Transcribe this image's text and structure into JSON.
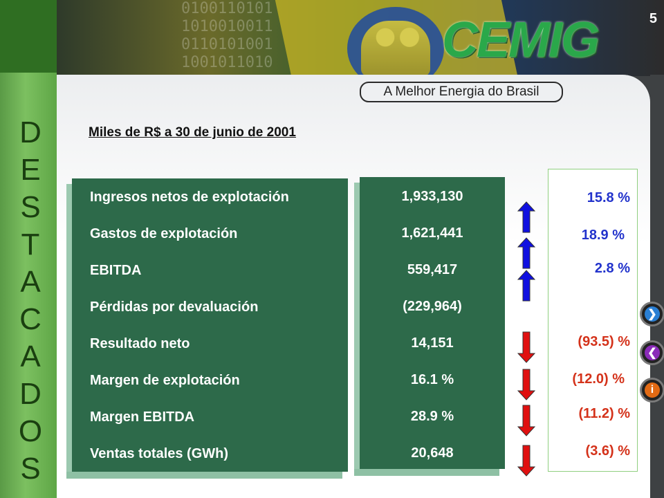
{
  "page_number": "5",
  "side_word": [
    "D",
    "E",
    "S",
    "T",
    "A",
    "C",
    "A",
    "D",
    "O",
    "S"
  ],
  "brand": {
    "logo": "CEMIG",
    "slogan": "A Melhor Energia do Brasil",
    "binary_text": "0100110101\n1010010011\n0110101001\n1001011010"
  },
  "subtitle": "Miles de R$ a 30 de junio de 2001",
  "rows": [
    {
      "label": "Ingresos netos de explotación",
      "value": "1,933,130",
      "trend": "up",
      "change": "15.8 %"
    },
    {
      "label": "Gastos de explotación",
      "value": "1,621,441",
      "trend": "up",
      "change": "18.9 %"
    },
    {
      "label": "EBITDA",
      "value": "559,417",
      "trend": "up",
      "change": "2.8 %"
    },
    {
      "label": "Pérdidas por devaluación",
      "value": "(229,964)",
      "trend": "none",
      "change": ""
    },
    {
      "label": "Resultado neto",
      "value": "14,151",
      "trend": "down",
      "change": "(93.5) %"
    },
    {
      "label": "Margen de explotación",
      "value": "16.1 %",
      "trend": "down",
      "change": "(12.0) %"
    },
    {
      "label": "Margen EBITDA",
      "value": "28.9 %",
      "trend": "down",
      "change": "(11.2) %"
    },
    {
      "label": "Ventas totales (GWh)",
      "value": "20,648",
      "trend": "down",
      "change": "(3.6) %"
    }
  ],
  "nav": {
    "next_icon": "chevron-right-icon",
    "prev_icon": "chevron-left-icon",
    "info_icon": "info-icon",
    "next_glyph": "❯",
    "prev_glyph": "❮",
    "info_glyph": "i"
  },
  "colors": {
    "table_green": "#2d6a4a",
    "up_color": "#2233cc",
    "down_color": "#d4321a",
    "arrow_up": "#1010e0",
    "arrow_down": "#e01010"
  }
}
